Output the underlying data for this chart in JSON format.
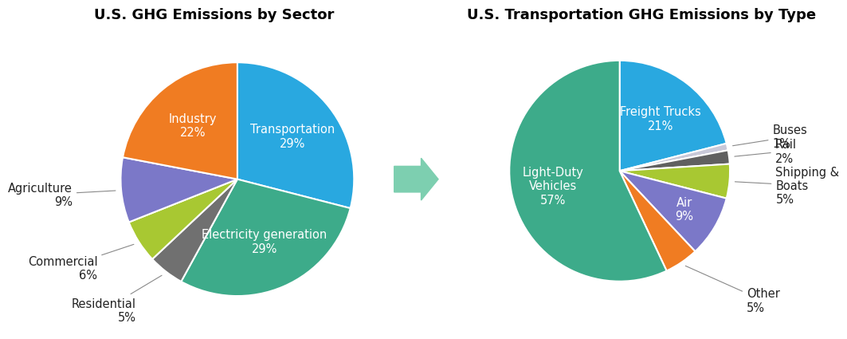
{
  "chart1_title": "U.S. GHG Emissions by Sector",
  "chart2_title": "U.S. Transportation GHG Emissions by Type",
  "sector_labels": [
    "Transportation\n29%",
    "Electricity generation\n29%",
    "Residential\n5%",
    "Commercial\n6%",
    "Agriculture\n9%",
    "Industry\n22%"
  ],
  "sector_values": [
    29,
    29,
    5,
    6,
    9,
    22
  ],
  "sector_colors": [
    "#29a8e0",
    "#3dab8a",
    "#707070",
    "#a8c832",
    "#7b78c8",
    "#f07c22"
  ],
  "sector_label_inside": [
    true,
    true,
    false,
    false,
    false,
    true
  ],
  "sector_label_ha": [
    "center",
    "center",
    "right",
    "right",
    "right",
    "center"
  ],
  "transport_labels": [
    "Freight Trucks\n21%",
    "Buses\n1%",
    "Rail\n2%",
    "Shipping &\nBoats\n5%",
    "Air\n9%",
    "Other\n5%",
    "Light-Duty\nVehicles\n57%"
  ],
  "transport_values": [
    21,
    1,
    2,
    5,
    9,
    5,
    57
  ],
  "transport_colors": [
    "#29a8e0",
    "#c8c8d8",
    "#606060",
    "#a8c832",
    "#7b78c8",
    "#f07c22",
    "#3dab8a"
  ],
  "transport_label_inside": [
    true,
    false,
    false,
    false,
    true,
    false,
    true
  ],
  "bg_color": "#ffffff",
  "inside_text_color": "#ffffff",
  "outside_text_color": "#222222",
  "title_fontsize": 13,
  "label_fontsize": 10.5,
  "arrow_color": "#7dcfb0"
}
